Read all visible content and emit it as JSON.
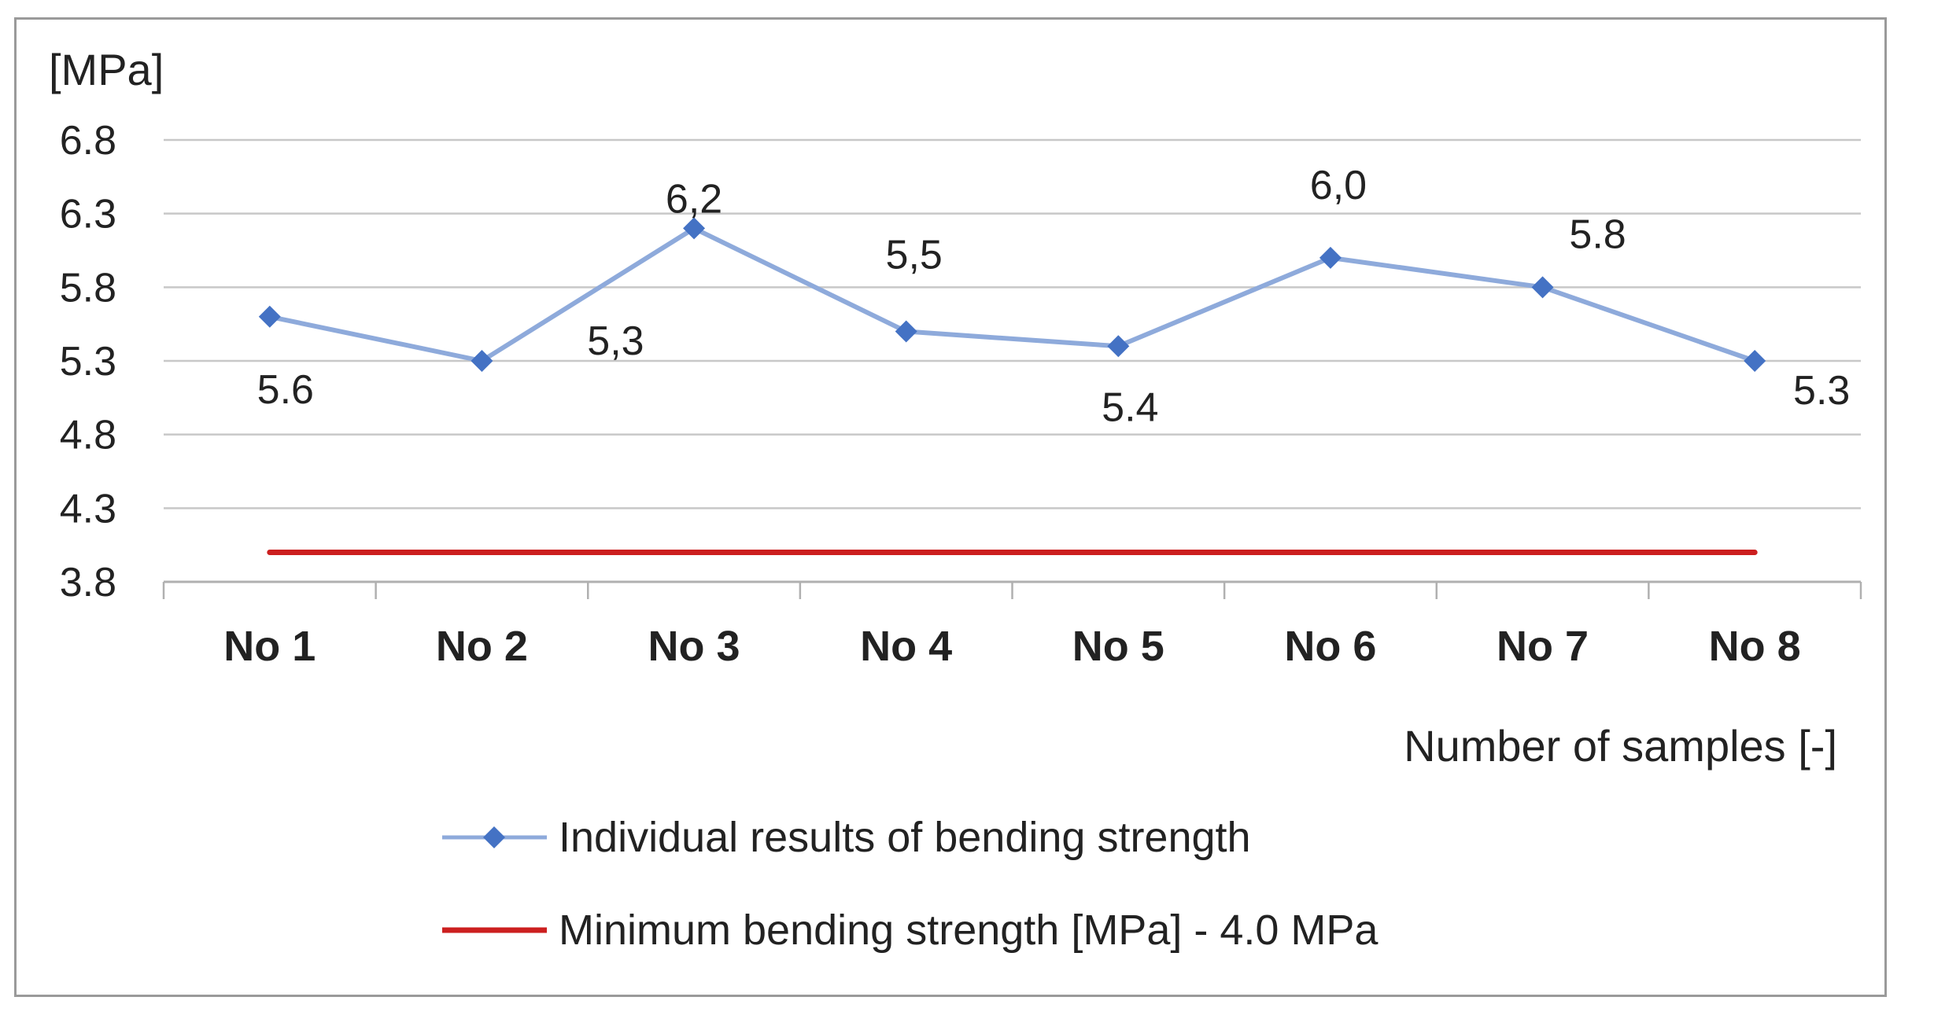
{
  "chart_data": {
    "type": "line",
    "title": "",
    "ylabel": "[MPa]",
    "xlabel": "Number of samples [-]",
    "ylim": [
      3.8,
      6.8
    ],
    "yticks": [
      "6.8",
      "6.3",
      "5.8",
      "5.3",
      "4.8",
      "4.3",
      "3.8"
    ],
    "ytick_values": [
      6.8,
      6.3,
      5.8,
      5.3,
      4.8,
      4.3,
      3.8
    ],
    "grid": true,
    "legend_position": "bottom",
    "categories": [
      "No 1",
      "No 2",
      "No 3",
      "No 4",
      "No 5",
      "No 6",
      "No 7",
      "No 8"
    ],
    "series": [
      {
        "name": "Individual results of bending strength",
        "color": "#8eaadb",
        "marker_color": "#4472c4",
        "marker": "diamond",
        "values": [
          5.6,
          5.3,
          6.2,
          5.5,
          5.4,
          6.0,
          5.8,
          5.3
        ],
        "data_labels": [
          "5.6",
          "5,3",
          "6,2",
          "5,5",
          "5.4",
          "6,0",
          "5.8",
          "5.3"
        ]
      },
      {
        "name": "Minimum bending strength [MPa] - 4.0 MPa",
        "color": "#cc1f1f",
        "marker": "none",
        "values": [
          4.0,
          4.0,
          4.0,
          4.0,
          4.0,
          4.0,
          4.0,
          4.0
        ]
      }
    ]
  }
}
